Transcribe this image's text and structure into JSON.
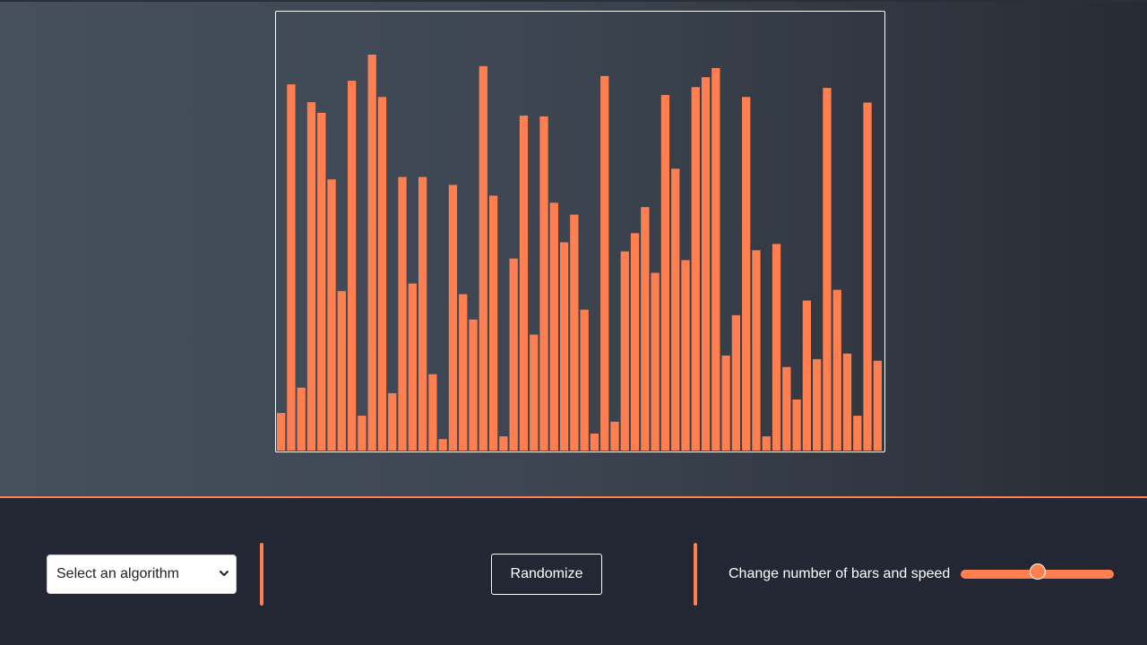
{
  "colors": {
    "bar": "#ff7f50",
    "accent": "#ff7f50",
    "frame_border": "#ffffff",
    "control_bg": "#222733",
    "text": "#ffffff"
  },
  "chart_data": {
    "type": "bar",
    "ylim": [
      0,
      100
    ],
    "values": [
      9.5,
      92.5,
      15.9,
      88.0,
      85.3,
      68.5,
      40.3,
      93.4,
      8.8,
      100.0,
      89.3,
      14.5,
      69.1,
      42.2,
      69.1,
      19.3,
      2.9,
      67.1,
      39.5,
      33.1,
      97.1,
      64.4,
      3.6,
      48.5,
      84.6,
      29.3,
      84.4,
      62.6,
      52.6,
      59.6,
      35.6,
      4.3,
      94.6,
      7.3,
      50.3,
      54.9,
      61.5,
      44.9,
      89.8,
      71.2,
      48.1,
      91.8,
      94.3,
      96.6,
      24.0,
      34.2,
      89.3,
      50.6,
      3.6,
      52.2,
      21.1,
      12.9,
      37.9,
      23.1,
      91.6,
      40.6,
      24.5,
      8.8,
      87.9,
      22.7
    ]
  },
  "controls": {
    "algorithm_select": {
      "selected": "Select an algorithm",
      "icon": "chevron-down-icon"
    },
    "randomize_label": "Randomize",
    "slider": {
      "label": "Change number of bars and speed",
      "value_fraction": 0.5
    }
  }
}
